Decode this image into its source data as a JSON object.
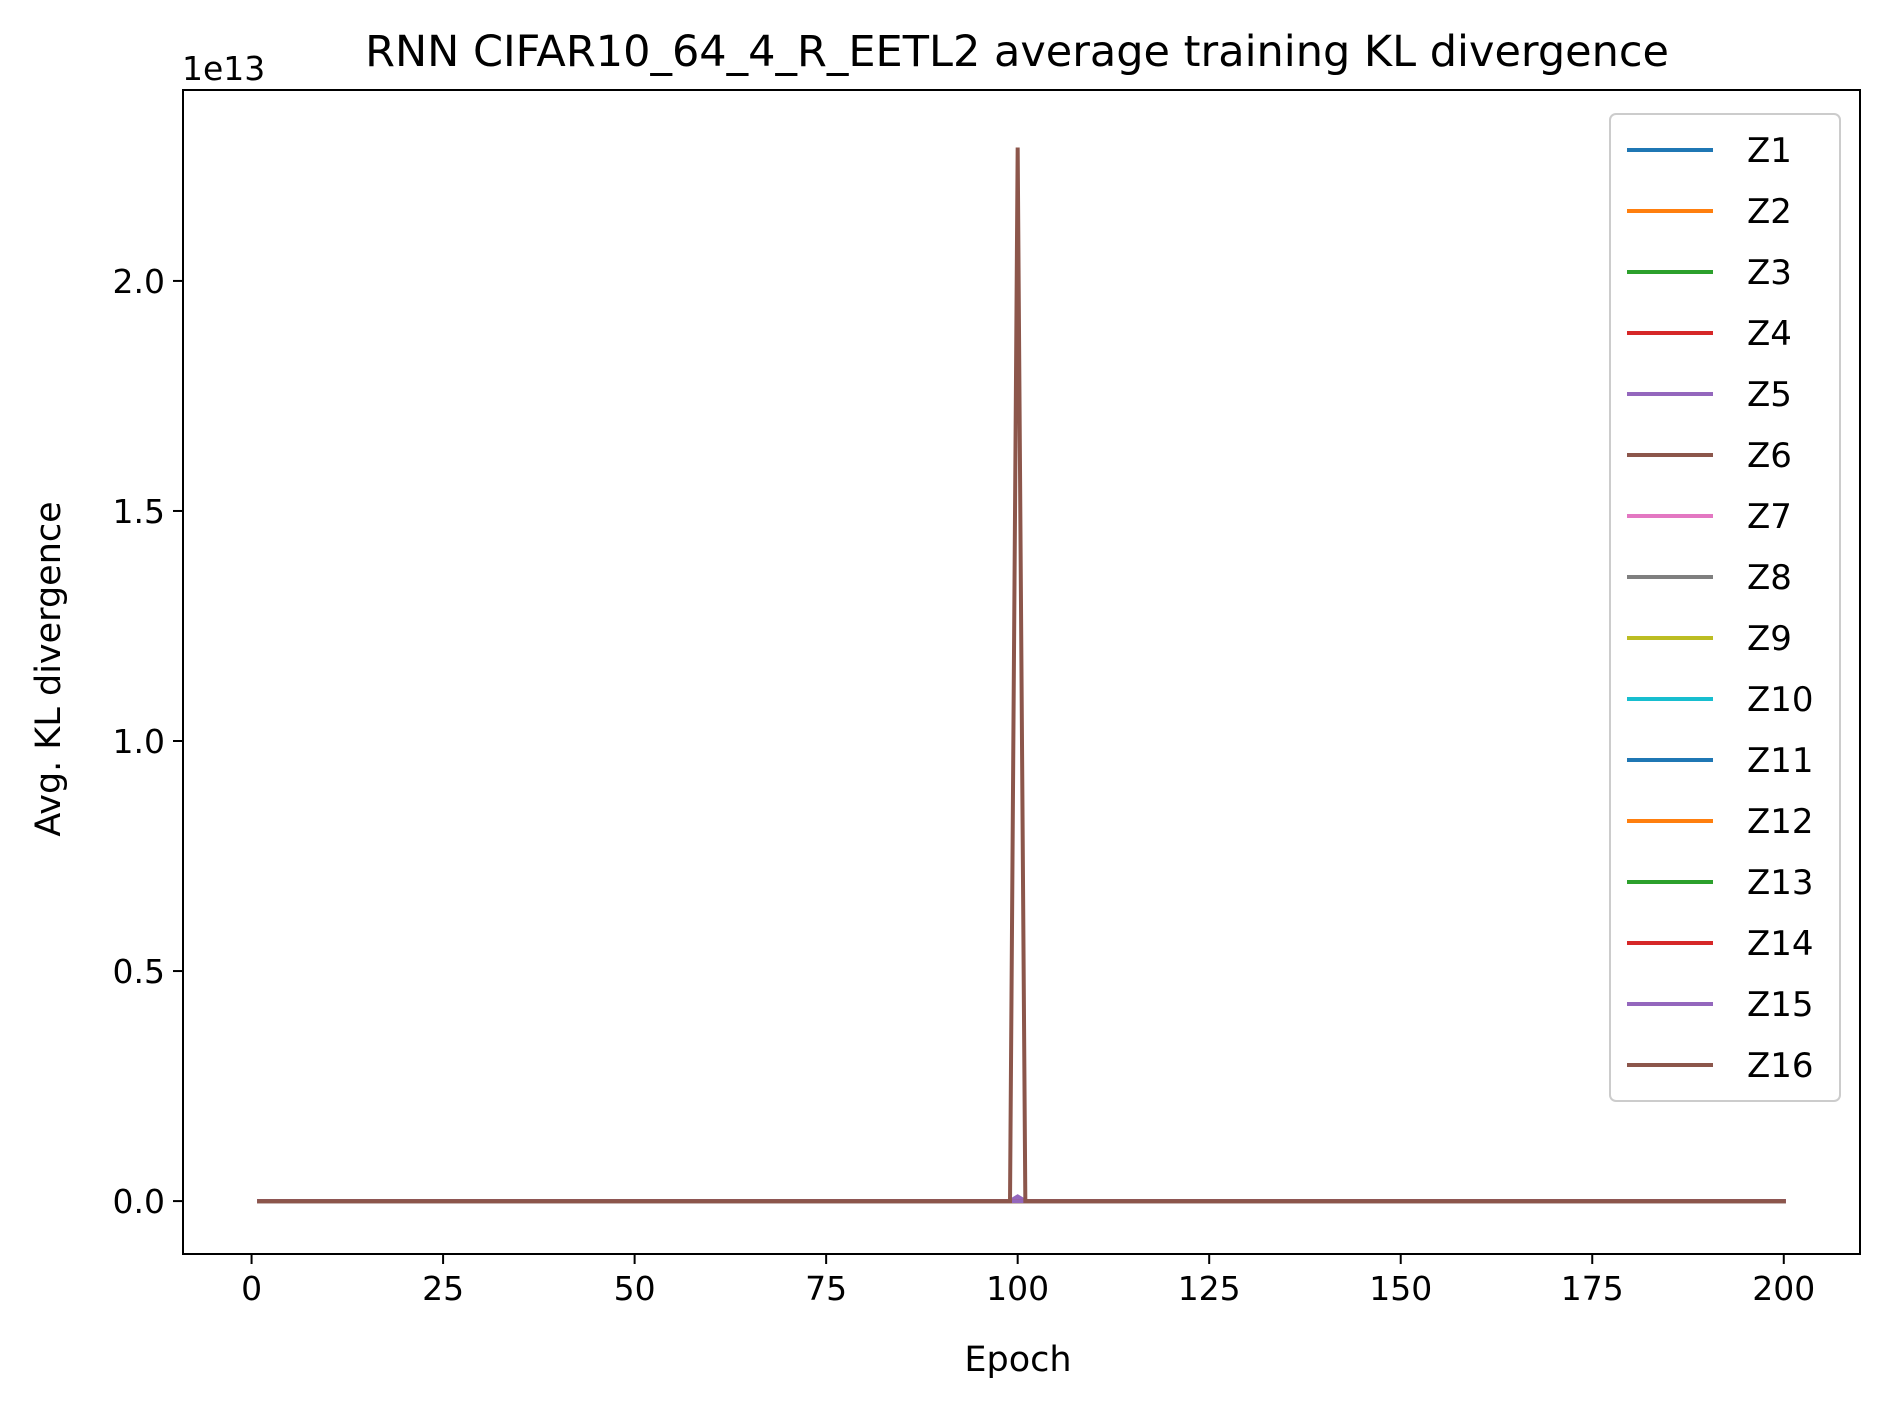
{
  "chart_data": {
    "type": "line",
    "title": "RNN CIFAR10_64_4_R_EETL2 average training KL divergence",
    "xlabel": "Epoch",
    "ylabel": "Avg. KL divergence",
    "y_offset_label": "1e13",
    "xlim": [
      -8.95,
      209.95
    ],
    "ylim": [
      -0.115,
      2.415
    ],
    "y_scale_factor": 10000000000000.0,
    "x_ticks": [
      0,
      25,
      50,
      75,
      100,
      125,
      150,
      175,
      200
    ],
    "x_tick_labels": [
      "0",
      "25",
      "50",
      "75",
      "100",
      "125",
      "150",
      "175",
      "200"
    ],
    "y_ticks": [
      0.0,
      0.5,
      1.0,
      1.5,
      2.0
    ],
    "y_tick_labels": [
      "0.0",
      "0.5",
      "1.0",
      "1.5",
      "2.0"
    ],
    "legend_position": "upper right",
    "grid": false,
    "series": [
      {
        "name": "Z1",
        "color": "#1f77b4",
        "points": [
          [
            1,
            0
          ],
          [
            200,
            0
          ]
        ]
      },
      {
        "name": "Z2",
        "color": "#ff7f0e",
        "points": [
          [
            1,
            0
          ],
          [
            200,
            0
          ]
        ]
      },
      {
        "name": "Z3",
        "color": "#2ca02c",
        "points": [
          [
            1,
            0
          ],
          [
            200,
            0
          ]
        ]
      },
      {
        "name": "Z4",
        "color": "#d62728",
        "points": [
          [
            1,
            0
          ],
          [
            200,
            0
          ]
        ]
      },
      {
        "name": "Z5",
        "color": "#9467bd",
        "points": [
          [
            1,
            0
          ],
          [
            99,
            0
          ],
          [
            100,
            0.01
          ],
          [
            101,
            0
          ],
          [
            200,
            0
          ]
        ]
      },
      {
        "name": "Z6",
        "color": "#8c564b",
        "points": [
          [
            1,
            0
          ],
          [
            200,
            0
          ]
        ]
      },
      {
        "name": "Z7",
        "color": "#e377c2",
        "points": [
          [
            1,
            0
          ],
          [
            200,
            0
          ]
        ]
      },
      {
        "name": "Z8",
        "color": "#7f7f7f",
        "points": [
          [
            1,
            0
          ],
          [
            200,
            0
          ]
        ]
      },
      {
        "name": "Z9",
        "color": "#bcbd22",
        "points": [
          [
            1,
            0
          ],
          [
            200,
            0
          ]
        ]
      },
      {
        "name": "Z10",
        "color": "#17becf",
        "points": [
          [
            1,
            0
          ],
          [
            200,
            0
          ]
        ]
      },
      {
        "name": "Z11",
        "color": "#1f77b4",
        "points": [
          [
            1,
            0
          ],
          [
            200,
            0
          ]
        ]
      },
      {
        "name": "Z12",
        "color": "#ff7f0e",
        "points": [
          [
            1,
            0
          ],
          [
            200,
            0
          ]
        ]
      },
      {
        "name": "Z13",
        "color": "#2ca02c",
        "points": [
          [
            1,
            0
          ],
          [
            200,
            0
          ]
        ]
      },
      {
        "name": "Z14",
        "color": "#d62728",
        "points": [
          [
            1,
            0
          ],
          [
            200,
            0
          ]
        ]
      },
      {
        "name": "Z15",
        "color": "#9467bd",
        "points": [
          [
            1,
            0
          ],
          [
            200,
            0
          ]
        ]
      },
      {
        "name": "Z16",
        "color": "#8c564b",
        "points": [
          [
            1,
            0
          ],
          [
            99,
            0
          ],
          [
            100,
            2.29
          ],
          [
            101,
            0
          ],
          [
            200,
            0
          ]
        ]
      }
    ]
  }
}
